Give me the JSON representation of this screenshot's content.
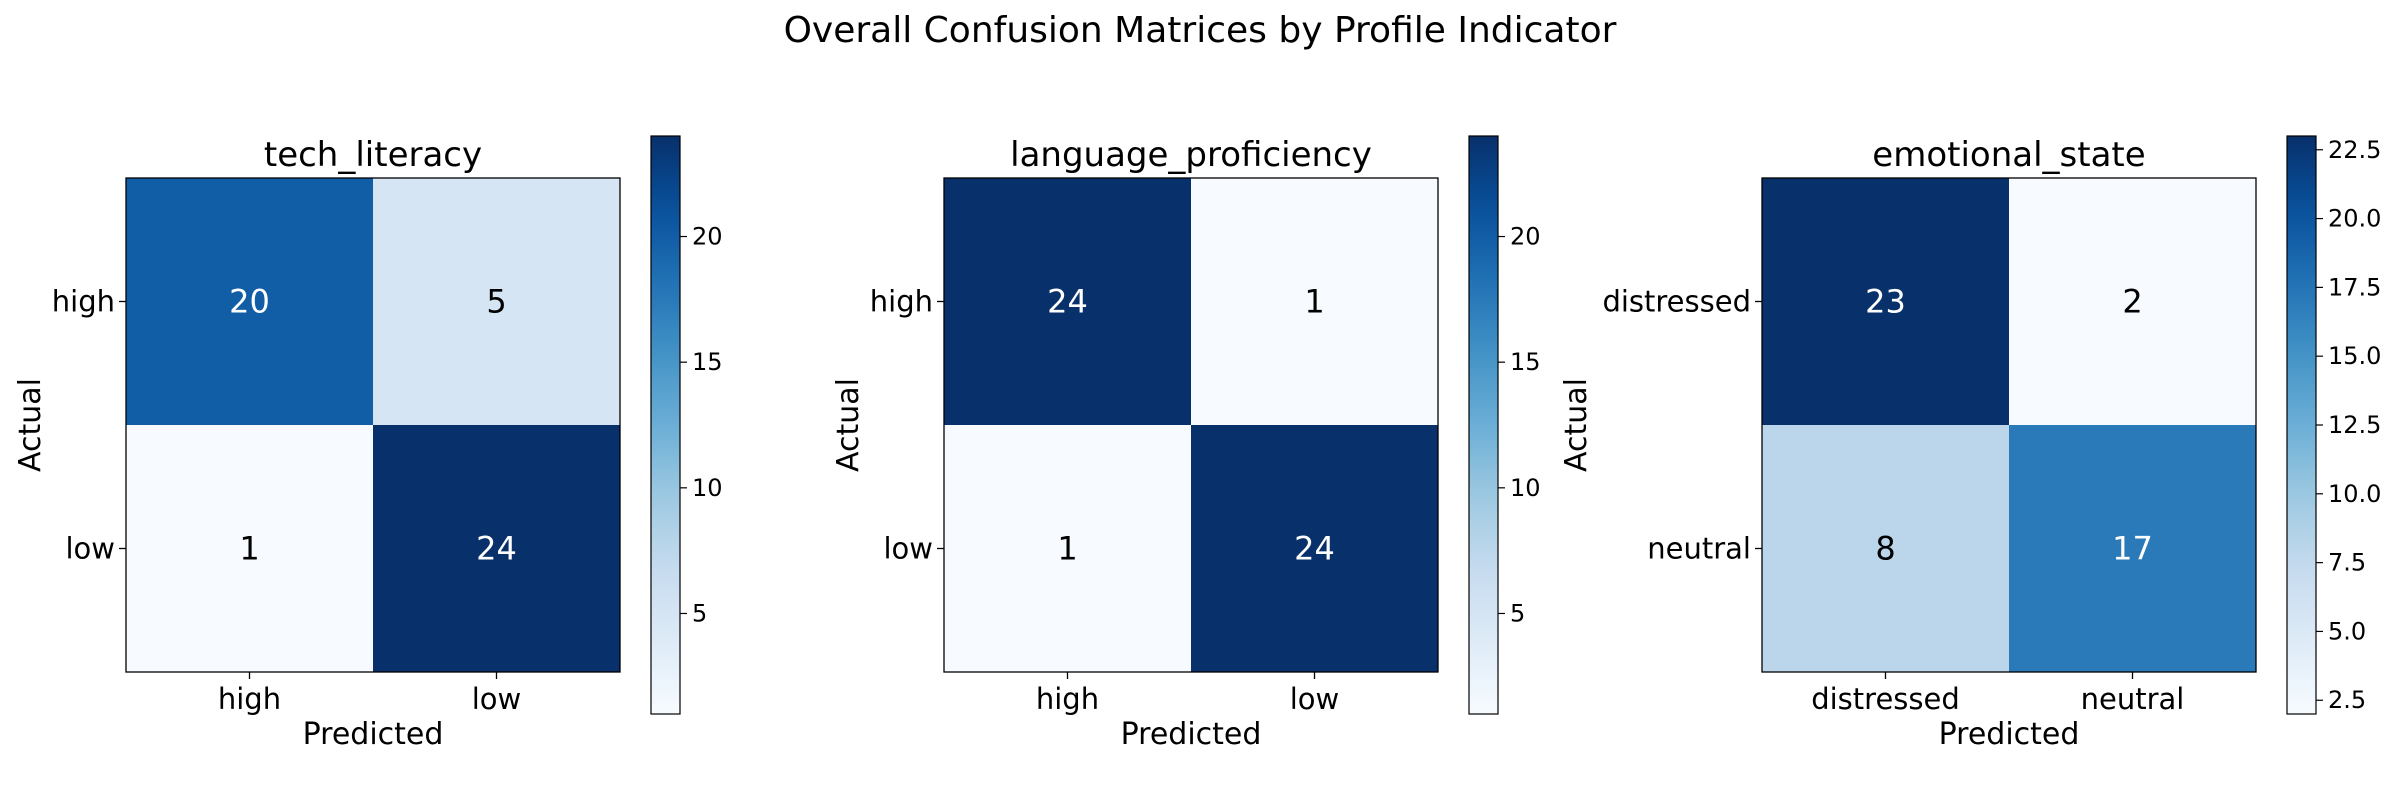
{
  "figure_title": "Overall Confusion Matrices by Profile Indicator",
  "chart_data": [
    {
      "type": "heatmap",
      "title": "tech_literacy",
      "xlabel": "Predicted",
      "ylabel": "Actual",
      "x_categories": [
        "high",
        "low"
      ],
      "y_categories": [
        "high",
        "low"
      ],
      "values": [
        [
          20,
          5
        ],
        [
          1,
          24
        ]
      ],
      "colormap": "Blues",
      "colorbar": {
        "min": 1,
        "max": 24,
        "ticks": [
          5,
          10,
          15,
          20
        ]
      }
    },
    {
      "type": "heatmap",
      "title": "language_proficiency",
      "xlabel": "Predicted",
      "ylabel": "Actual",
      "x_categories": [
        "high",
        "low"
      ],
      "y_categories": [
        "high",
        "low"
      ],
      "values": [
        [
          24,
          1
        ],
        [
          1,
          24
        ]
      ],
      "colormap": "Blues",
      "colorbar": {
        "min": 1,
        "max": 24,
        "ticks": [
          5,
          10,
          15,
          20
        ]
      }
    },
    {
      "type": "heatmap",
      "title": "emotional_state",
      "xlabel": "Predicted",
      "ylabel": "Actual",
      "x_categories": [
        "distressed",
        "neutral"
      ],
      "y_categories": [
        "distressed",
        "neutral"
      ],
      "values": [
        [
          23,
          2
        ],
        [
          8,
          17
        ]
      ],
      "colormap": "Blues",
      "colorbar": {
        "min": 2,
        "max": 23,
        "ticks": [
          2.5,
          5.0,
          7.5,
          10.0,
          12.5,
          15.0,
          17.5,
          20.0,
          22.5
        ],
        "tick_labels": [
          "2.5",
          "5.0",
          "7.5",
          "10.0",
          "12.5",
          "15.0",
          "17.5",
          "20.0",
          "22.5"
        ]
      }
    }
  ]
}
